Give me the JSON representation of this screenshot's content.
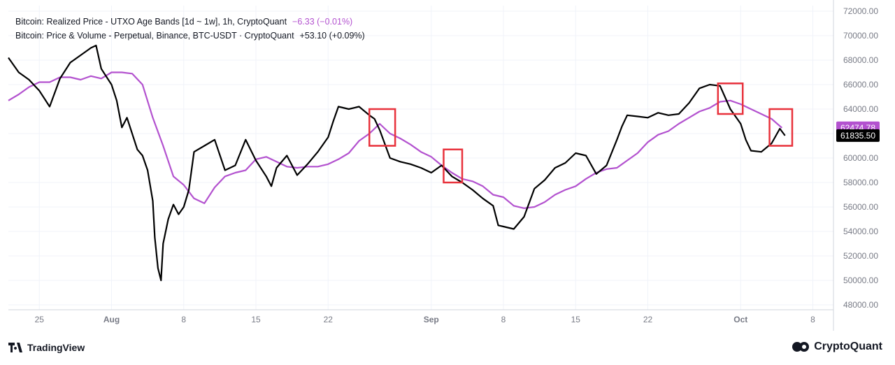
{
  "legend": {
    "line1_label": "Bitcoin: Realized Price - UTXO Age Bands [1d ~ 1w], 1h, CryptoQuant",
    "line1_change": "−6.33 (−0.01%)",
    "line2_label": "Bitcoin: Price & Volume - Perpetual, Binance, BTC-USDT · CryptoQuant",
    "line2_change": "+53.10 (+0.09%)"
  },
  "branding": {
    "left": "TradingView",
    "right": "CryptoQuant"
  },
  "colors": {
    "price": "#000000",
    "realized": "#b352cf",
    "box": "#e8323c",
    "grid": "#f0f3fa",
    "axis_text": "#787b86",
    "change_text": "#b352cf"
  },
  "chart_data": {
    "type": "line",
    "x_unit": "day offset (0 = Jul 22)",
    "ylim": [
      48000,
      72000
    ],
    "y_ticks": [
      "72000.00",
      "70000.00",
      "68000.00",
      "66000.00",
      "64000.00",
      "62000.00",
      "60000.00",
      "58000.00",
      "56000.00",
      "54000.00",
      "52000.00",
      "50000.00",
      "48000.00"
    ],
    "x_ticks": [
      {
        "label": "25",
        "day": 3
      },
      {
        "label": "Aug",
        "day": 10
      },
      {
        "label": "8",
        "day": 17
      },
      {
        "label": "15",
        "day": 24
      },
      {
        "label": "22",
        "day": 31
      },
      {
        "label": "Sep",
        "day": 41
      },
      {
        "label": "8",
        "day": 48
      },
      {
        "label": "15",
        "day": 55
      },
      {
        "label": "22",
        "day": 62
      },
      {
        "label": "Oct",
        "day": 71
      },
      {
        "label": "8",
        "day": 78
      }
    ],
    "series": [
      {
        "name": "Bitcoin: Price & Volume - Perpetual, Binance, BTC-USDT",
        "last_label": "61835.50",
        "points": [
          [
            0,
            68200
          ],
          [
            1,
            67000
          ],
          [
            2,
            66400
          ],
          [
            3,
            65500
          ],
          [
            4,
            64200
          ],
          [
            5,
            66500
          ],
          [
            6,
            67800
          ],
          [
            7,
            68400
          ],
          [
            8,
            69000
          ],
          [
            8.5,
            69200
          ],
          [
            9,
            67300
          ],
          [
            10,
            66000
          ],
          [
            10.5,
            64700
          ],
          [
            11,
            62500
          ],
          [
            11.5,
            63300
          ],
          [
            12,
            62000
          ],
          [
            12.5,
            60700
          ],
          [
            13,
            60200
          ],
          [
            13.5,
            59000
          ],
          [
            14,
            56500
          ],
          [
            14.2,
            53500
          ],
          [
            14.5,
            51000
          ],
          [
            14.8,
            50000
          ],
          [
            15,
            53000
          ],
          [
            15.5,
            55000
          ],
          [
            16,
            56200
          ],
          [
            16.5,
            55400
          ],
          [
            17,
            56000
          ],
          [
            17.5,
            57400
          ],
          [
            18,
            60500
          ],
          [
            19,
            61000
          ],
          [
            20,
            61500
          ],
          [
            21,
            59000
          ],
          [
            22,
            59400
          ],
          [
            23,
            61500
          ],
          [
            24,
            59800
          ],
          [
            25,
            58500
          ],
          [
            25.5,
            57700
          ],
          [
            26,
            59200
          ],
          [
            27,
            60200
          ],
          [
            28,
            58600
          ],
          [
            29,
            59500
          ],
          [
            30,
            60500
          ],
          [
            31,
            61700
          ],
          [
            31.5,
            63000
          ],
          [
            32,
            64200
          ],
          [
            33,
            64000
          ],
          [
            34,
            64200
          ],
          [
            35,
            63500
          ],
          [
            35.5,
            63200
          ],
          [
            36,
            62300
          ],
          [
            37,
            60000
          ],
          [
            38,
            59700
          ],
          [
            39,
            59500
          ],
          [
            40,
            59200
          ],
          [
            41,
            58800
          ],
          [
            42,
            59400
          ],
          [
            43,
            58500
          ],
          [
            44,
            58000
          ],
          [
            45,
            57400
          ],
          [
            46,
            56700
          ],
          [
            47,
            56100
          ],
          [
            47.5,
            54500
          ],
          [
            48,
            54400
          ],
          [
            49,
            54200
          ],
          [
            50,
            55200
          ],
          [
            51,
            57500
          ],
          [
            52,
            58200
          ],
          [
            53,
            59200
          ],
          [
            54,
            59600
          ],
          [
            55,
            60400
          ],
          [
            56,
            60200
          ],
          [
            57,
            58700
          ],
          [
            58,
            59400
          ],
          [
            59,
            61500
          ],
          [
            59.5,
            62600
          ],
          [
            60,
            63500
          ],
          [
            61,
            63400
          ],
          [
            62,
            63300
          ],
          [
            63,
            63700
          ],
          [
            64,
            63500
          ],
          [
            65,
            63600
          ],
          [
            66,
            64500
          ],
          [
            67,
            65700
          ],
          [
            68,
            66000
          ],
          [
            69,
            65900
          ],
          [
            70,
            64000
          ],
          [
            71,
            62800
          ],
          [
            71.5,
            61500
          ],
          [
            72,
            60600
          ],
          [
            73,
            60500
          ],
          [
            74,
            61200
          ],
          [
            74.8,
            62400
          ],
          [
            75.3,
            61835
          ]
        ]
      },
      {
        "name": "Bitcoin: Realized Price - UTXO Age Bands [1d ~ 1w]",
        "last_label": "62474.78",
        "points": [
          [
            0,
            64700
          ],
          [
            1,
            65200
          ],
          [
            2,
            65800
          ],
          [
            3,
            66200
          ],
          [
            4,
            66200
          ],
          [
            5,
            66600
          ],
          [
            6,
            66600
          ],
          [
            7,
            66400
          ],
          [
            8,
            66700
          ],
          [
            9,
            66500
          ],
          [
            10,
            67000
          ],
          [
            11,
            67000
          ],
          [
            12,
            66900
          ],
          [
            13,
            66000
          ],
          [
            14,
            63300
          ],
          [
            15,
            61000
          ],
          [
            16,
            58500
          ],
          [
            17,
            57800
          ],
          [
            18,
            56700
          ],
          [
            19,
            56300
          ],
          [
            20,
            57600
          ],
          [
            21,
            58500
          ],
          [
            22,
            58800
          ],
          [
            23,
            59000
          ],
          [
            24,
            59900
          ],
          [
            25,
            60100
          ],
          [
            26,
            59700
          ],
          [
            27,
            59300
          ],
          [
            28,
            59200
          ],
          [
            29,
            59300
          ],
          [
            30,
            59300
          ],
          [
            31,
            59500
          ],
          [
            32,
            59900
          ],
          [
            33,
            60400
          ],
          [
            34,
            61400
          ],
          [
            35,
            62000
          ],
          [
            36,
            62800
          ],
          [
            37,
            62000
          ],
          [
            38,
            61600
          ],
          [
            39,
            61100
          ],
          [
            40,
            60500
          ],
          [
            41,
            60100
          ],
          [
            42,
            59400
          ],
          [
            43,
            58800
          ],
          [
            44,
            58300
          ],
          [
            45,
            58100
          ],
          [
            46,
            57700
          ],
          [
            47,
            57000
          ],
          [
            48,
            56800
          ],
          [
            49,
            56100
          ],
          [
            50,
            55900
          ],
          [
            51,
            56000
          ],
          [
            52,
            56400
          ],
          [
            53,
            57000
          ],
          [
            54,
            57400
          ],
          [
            55,
            57700
          ],
          [
            56,
            58300
          ],
          [
            57,
            58800
          ],
          [
            58,
            59100
          ],
          [
            59,
            59200
          ],
          [
            60,
            59800
          ],
          [
            61,
            60400
          ],
          [
            62,
            61300
          ],
          [
            63,
            61900
          ],
          [
            64,
            62200
          ],
          [
            65,
            62800
          ],
          [
            66,
            63300
          ],
          [
            67,
            63800
          ],
          [
            68,
            64100
          ],
          [
            69,
            64600
          ],
          [
            70,
            64700
          ],
          [
            71,
            64400
          ],
          [
            72,
            64000
          ],
          [
            73,
            63600
          ],
          [
            74,
            63200
          ],
          [
            75,
            62470
          ]
        ]
      }
    ],
    "annotations": [
      {
        "type": "box",
        "x_range": [
          35,
          37.5
        ],
        "y_range": [
          61000,
          64000
        ]
      },
      {
        "type": "box",
        "x_range": [
          42.2,
          44
        ],
        "y_range": [
          58000,
          60700
        ]
      },
      {
        "type": "box",
        "x_range": [
          68.8,
          71.2
        ],
        "y_range": [
          63600,
          66100
        ]
      },
      {
        "type": "box",
        "x_range": [
          73.8,
          76
        ],
        "y_range": [
          61000,
          64000
        ]
      }
    ]
  }
}
